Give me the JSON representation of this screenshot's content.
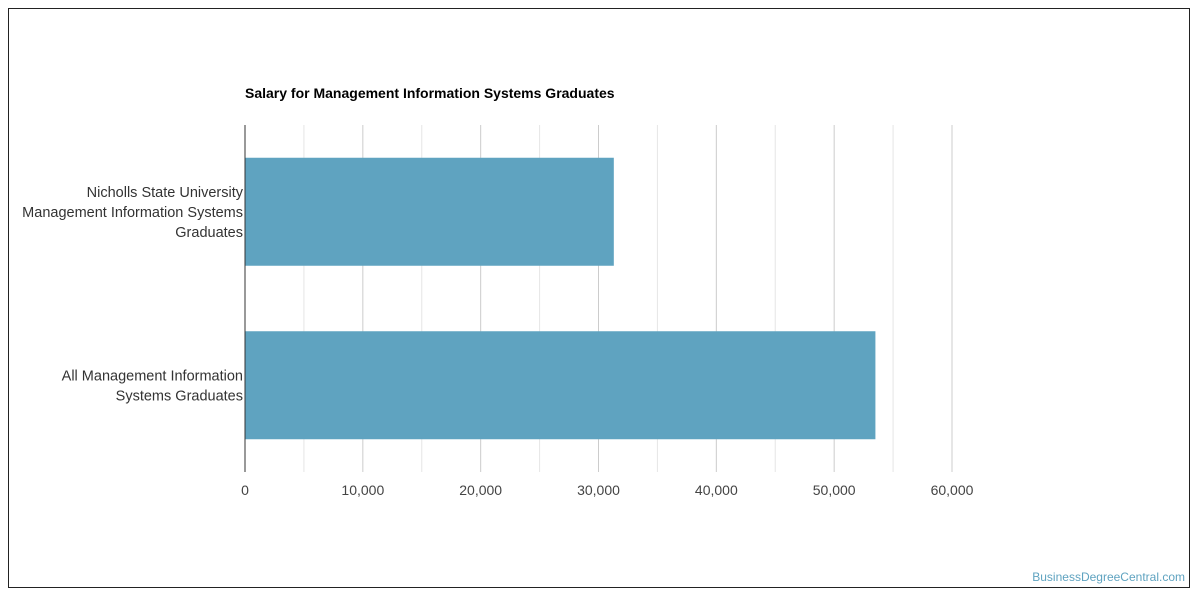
{
  "colors": {
    "bar": "#5fa3c0",
    "watermark": "#5fa3c0",
    "gridline": "#dddddd",
    "axis": "#333333"
  },
  "watermark": "BusinessDegreeCentral.com",
  "chart_data": {
    "type": "bar",
    "orientation": "horizontal",
    "title": "Salary for Management Information Systems Graduates",
    "categories": [
      [
        "Nicholls State University",
        "Management Information Systems",
        "Graduates"
      ],
      [
        "All Management Information",
        "Systems Graduates"
      ]
    ],
    "values": [
      31300,
      53500
    ],
    "xlim": [
      0,
      60000
    ],
    "ticks": [
      0,
      10000,
      20000,
      30000,
      40000,
      50000,
      60000
    ],
    "tick_labels": [
      "0",
      "10,000",
      "20,000",
      "30,000",
      "40,000",
      "50,000",
      "60,000"
    ],
    "grid": true,
    "legend": "none"
  }
}
